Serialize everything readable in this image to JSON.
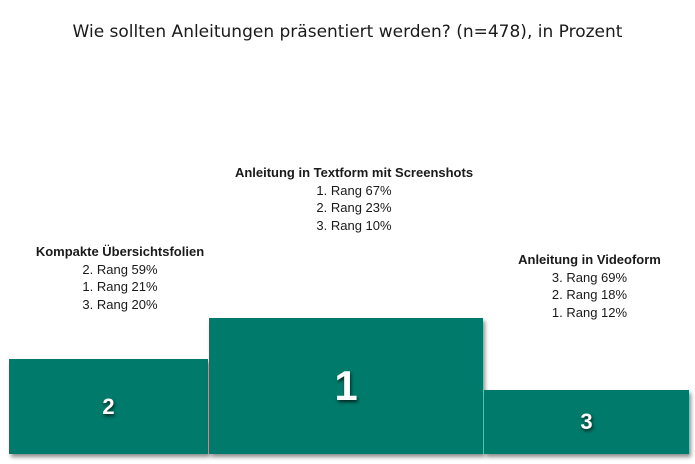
{
  "title": "Wie sollten Anleitungen präsentiert werden? (n=478), in Prozent",
  "colors": {
    "podium": "#007a6a",
    "text": "#1a1a1a",
    "podium_text": "#ffffff"
  },
  "chart_data": {
    "type": "podium",
    "title": "Wie sollten Anleitungen präsentiert werden? (n=478), in Prozent",
    "entries": [
      {
        "place": "2",
        "name": "Kompakte Übersichtsfolien",
        "ranks": [
          "2. Rang 59%",
          "1. Rang 21%",
          "3. Rang 20%"
        ],
        "values": {
          "rang1": 21,
          "rang2": 59,
          "rang3": 20
        }
      },
      {
        "place": "1",
        "name": "Anleitung in Textform mit Screenshots",
        "ranks": [
          "1. Rang 67%",
          "2. Rang 23%",
          "3. Rang 10%"
        ],
        "values": {
          "rang1": 67,
          "rang2": 23,
          "rang3": 10
        }
      },
      {
        "place": "3",
        "name": "Anleitung in Videoform",
        "ranks": [
          "3. Rang 69%",
          "2. Rang 18%",
          "1. Rang 12%"
        ],
        "values": {
          "rang1": 12,
          "rang2": 18,
          "rang3": 69
        }
      }
    ]
  }
}
